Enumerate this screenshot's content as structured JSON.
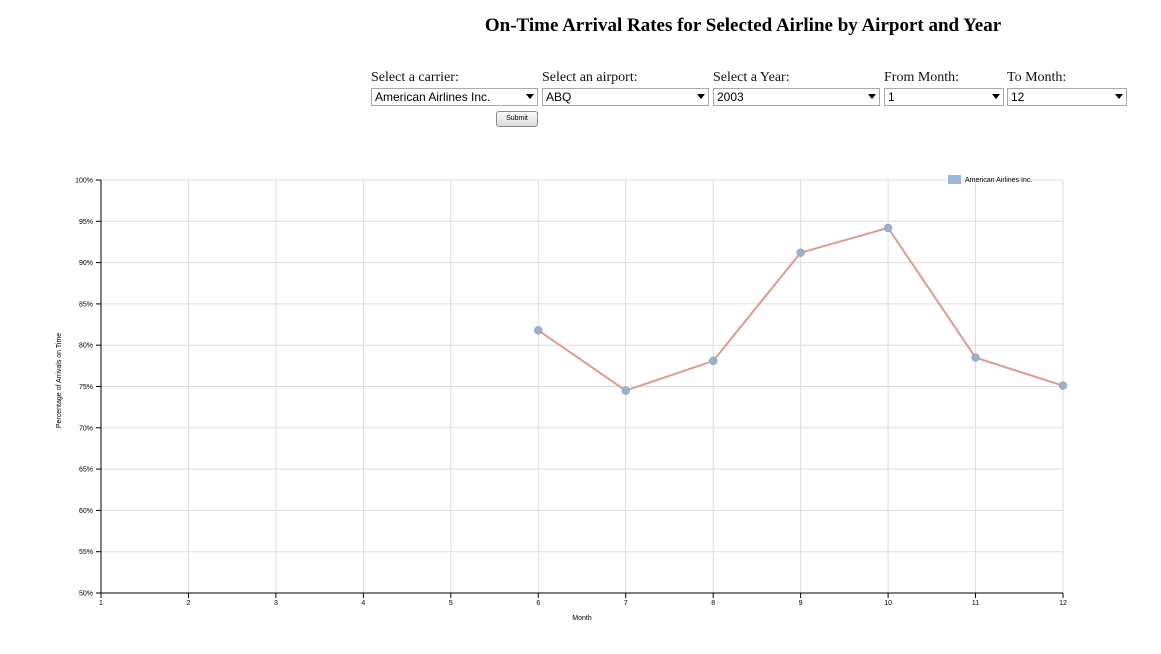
{
  "header": {
    "title": "On-Time Arrival Rates for Selected Airline by Airport and Year"
  },
  "controls": {
    "carrier": {
      "label": "Select a carrier:",
      "value": "American Airlines Inc."
    },
    "airport": {
      "label": "Select an airport:",
      "value": "ABQ"
    },
    "year": {
      "label": "Select a Year:",
      "value": "2003"
    },
    "from_month": {
      "label": "From Month:",
      "value": "1"
    },
    "to_month": {
      "label": "To Month:",
      "value": "12"
    },
    "submit_label": "Submit"
  },
  "colors": {
    "line": "#e09a90",
    "marker": "#9bb0cc",
    "legend_swatch": "#9bb8d6",
    "grid": "#dddddd"
  },
  "chart_data": {
    "type": "line",
    "title": "",
    "xlabel": "Month",
    "ylabel": "Percentage of Arrivals on Time",
    "xlim": [
      1,
      12
    ],
    "ylim": [
      50,
      100
    ],
    "x_ticks": [
      "1",
      "2",
      "3",
      "4",
      "5",
      "6",
      "7",
      "8",
      "9",
      "10",
      "11",
      "12"
    ],
    "y_ticks": [
      "50%",
      "55%",
      "60%",
      "65%",
      "70%",
      "75%",
      "80%",
      "85%",
      "90%",
      "95%",
      "100%"
    ],
    "grid": true,
    "legend_position": "top-right",
    "series": [
      {
        "name": "American Airlines Inc.",
        "x": [
          6,
          7,
          8,
          9,
          10,
          11,
          12
        ],
        "y": [
          81.8,
          74.5,
          78.1,
          91.2,
          94.2,
          78.5,
          75.1
        ]
      }
    ]
  }
}
